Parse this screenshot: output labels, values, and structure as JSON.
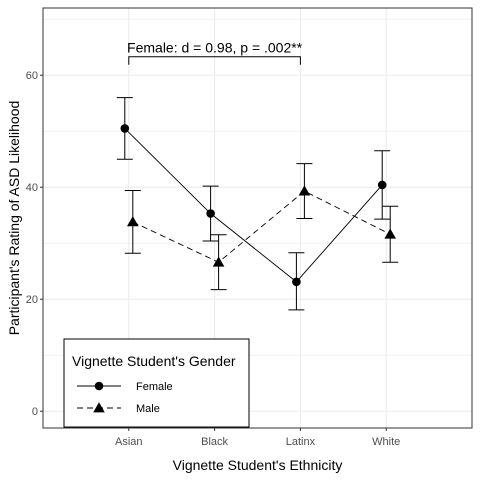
{
  "chart_data": {
    "type": "line",
    "categories": [
      "Asian",
      "Black",
      "Latinx",
      "White"
    ],
    "xlabel": "Vignette Student's Ethnicity",
    "ylabel": "Participant's Rating of ASD Likelihood",
    "ylim": [
      -3,
      72
    ],
    "yticks": [
      0,
      20,
      40,
      60
    ],
    "grid": true,
    "series": [
      {
        "name": "Female",
        "marker": "circle",
        "linestyle": "solid",
        "values": [
          50.5,
          35.3,
          23.1,
          40.4
        ],
        "lower": [
          45.0,
          30.4,
          18.1,
          34.3
        ],
        "upper": [
          56.0,
          40.2,
          28.3,
          46.5
        ]
      },
      {
        "name": "Male",
        "marker": "triangle",
        "linestyle": "dashed",
        "values": [
          33.8,
          26.6,
          39.3,
          31.6
        ],
        "lower": [
          28.2,
          21.7,
          34.4,
          26.6
        ],
        "upper": [
          39.4,
          31.5,
          44.2,
          36.6
        ]
      }
    ],
    "annotation": {
      "text": "Female: d = 0.98, p = .002**",
      "from_category": "Asian",
      "to_category": "Latinx",
      "y": 63.3
    },
    "legend": {
      "title": "Vignette Student's Gender",
      "placement": "bottom-left"
    },
    "colors": {
      "lines": "#000000",
      "grid": "#ebebeb",
      "panel_border": "#333333",
      "background": "#ffffff"
    }
  }
}
